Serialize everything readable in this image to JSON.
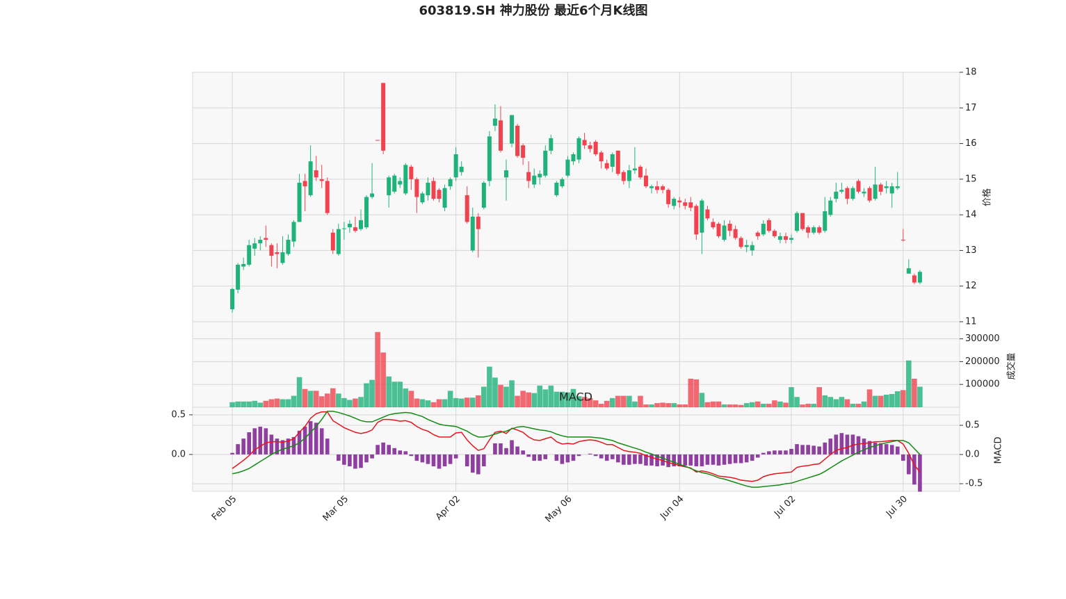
{
  "chart_data": {
    "type": "candlestick",
    "title": "603819.SH 神力股份 最近6个月K线图",
    "categories": [
      "Feb 05",
      null,
      null,
      null,
      null,
      null,
      null,
      null,
      null,
      null,
      null,
      null,
      null,
      null,
      null,
      null,
      null,
      null,
      null,
      null,
      "Mar 05",
      null,
      null,
      null,
      null,
      null,
      null,
      null,
      null,
      null,
      null,
      null,
      null,
      null,
      null,
      null,
      null,
      null,
      null,
      null,
      "Apr 02",
      null,
      null,
      null,
      null,
      null,
      null,
      null,
      null,
      null,
      null,
      null,
      null,
      null,
      null,
      null,
      null,
      null,
      null,
      null,
      "May 06",
      null,
      null,
      null,
      null,
      null,
      null,
      null,
      null,
      null,
      null,
      null,
      null,
      null,
      null,
      null,
      null,
      null,
      null,
      null,
      "Jun 04",
      null,
      null,
      null,
      null,
      null,
      null,
      null,
      null,
      null,
      null,
      null,
      null,
      null,
      null,
      null,
      null,
      null,
      null,
      null,
      "Jul 02",
      null,
      null,
      null,
      null,
      null,
      null,
      null,
      null,
      null,
      null,
      null,
      null,
      null,
      null,
      null,
      null,
      null,
      null,
      null,
      "Jul 30",
      null,
      null,
      null
    ],
    "up_color": "#1fb27a",
    "down_color": "#f0434f",
    "grid": true,
    "ylabel": "价格",
    "ylim": [
      11,
      18
    ],
    "yticks": [
      11,
      12,
      13,
      14,
      15,
      16,
      17,
      18
    ],
    "open": [
      11.35,
      11.9,
      12.55,
      12.6,
      13.05,
      13.2,
      13.35,
      13.15,
      12.95,
      12.65,
      12.9,
      13.25,
      13.8,
      14.95,
      14.55,
      15.25,
      15.0,
      14.95,
      13.5,
      12.9,
      13.6,
      13.65,
      13.65,
      13.6,
      13.65,
      14.5,
      16.1,
      17.7,
      14.55,
      14.65,
      14.85,
      14.6,
      15.35,
      15.0,
      14.35,
      14.55,
      14.95,
      14.7,
      14.2,
      14.8,
      15.05,
      15.2,
      14.55,
      13.0,
      13.95,
      14.2,
      14.95,
      16.5,
      16.65,
      15.05,
      16.0,
      16.5,
      15.95,
      15.2,
      14.85,
      15.05,
      15.1,
      15.8,
      14.55,
      14.8,
      15.1,
      15.5,
      15.55,
      16.1,
      15.95,
      16.05,
      15.75,
      15.45,
      15.35,
      15.8,
      15.2,
      14.95,
      15.25,
      15.35,
      15.1,
      14.75,
      14.8,
      14.8,
      14.7,
      14.25,
      14.4,
      14.35,
      14.35,
      14.25,
      13.5,
      14.15,
      13.8,
      13.75,
      13.3,
      13.75,
      13.6,
      13.35,
      13.1,
      13.0,
      13.5,
      13.45,
      13.85,
      13.55,
      13.3,
      13.4,
      13.3,
      13.55,
      14.05,
      13.65,
      13.5,
      13.65,
      13.55,
      14.0,
      14.45,
      14.65,
      14.75,
      14.45,
      14.95,
      14.6,
      14.75,
      14.45,
      14.85,
      14.75,
      14.6,
      14.75,
      13.3,
      12.35,
      12.3,
      12.1
    ],
    "high": [
      11.95,
      12.65,
      12.8,
      13.3,
      13.35,
      13.4,
      13.7,
      13.2,
      13.2,
      13.4,
      13.45,
      13.85,
      15.15,
      15.15,
      15.95,
      15.65,
      15.4,
      15.05,
      13.6,
      13.75,
      13.8,
      13.85,
      13.95,
      14.15,
      14.55,
      15.45,
      16.1,
      17.7,
      15.1,
      15.15,
      15.05,
      15.45,
      15.4,
      15.05,
      14.65,
      15.05,
      15.05,
      14.75,
      14.85,
      15.05,
      15.9,
      15.5,
      14.8,
      14.2,
      14.05,
      14.95,
      16.35,
      17.1,
      17.05,
      15.55,
      16.8,
      16.55,
      16.0,
      15.5,
      15.3,
      15.25,
      15.95,
      16.25,
      14.95,
      15.05,
      15.65,
      15.75,
      16.2,
      16.3,
      16.05,
      16.1,
      15.8,
      15.55,
      15.75,
      15.8,
      15.25,
      15.4,
      15.9,
      15.4,
      15.3,
      14.85,
      14.95,
      14.85,
      14.75,
      14.5,
      14.5,
      14.45,
      14.5,
      14.3,
      14.45,
      14.25,
      13.9,
      13.8,
      13.85,
      13.85,
      13.7,
      13.4,
      13.3,
      13.25,
      13.55,
      13.85,
      13.9,
      13.6,
      13.5,
      13.5,
      13.45,
      14.1,
      14.05,
      13.7,
      13.7,
      13.7,
      14.5,
      14.5,
      14.9,
      14.9,
      14.8,
      14.8,
      15.0,
      14.75,
      14.8,
      15.35,
      14.9,
      14.95,
      14.9,
      15.2,
      13.6,
      12.75,
      12.35,
      12.45
    ],
    "low": [
      11.25,
      11.8,
      12.45,
      12.55,
      12.85,
      13.0,
      13.1,
      12.55,
      12.5,
      12.6,
      12.85,
      13.1,
      13.8,
      14.1,
      14.5,
      14.95,
      14.75,
      14.0,
      12.9,
      12.85,
      13.3,
      13.5,
      13.5,
      13.55,
      13.6,
      14.45,
      16.08,
      15.7,
      14.2,
      14.6,
      14.75,
      14.55,
      14.7,
      14.05,
      14.3,
      14.4,
      14.4,
      14.35,
      14.1,
      14.7,
      14.95,
      15.1,
      13.75,
      12.95,
      12.8,
      14.15,
      14.8,
      16.35,
      15.75,
      14.4,
      15.9,
      15.6,
      15.4,
      14.75,
      14.75,
      14.85,
      15.05,
      15.7,
      14.5,
      14.75,
      15.05,
      15.4,
      15.45,
      15.85,
      15.75,
      15.65,
      15.3,
      15.25,
      15.2,
      15.1,
      14.85,
      14.75,
      15.15,
      15.0,
      14.75,
      14.6,
      14.6,
      14.6,
      14.2,
      14.15,
      14.2,
      14.15,
      14.1,
      13.3,
      12.9,
      13.85,
      13.6,
      13.35,
      13.25,
      13.4,
      13.3,
      13.05,
      12.95,
      12.85,
      13.3,
      13.4,
      13.5,
      13.35,
      13.2,
      13.2,
      13.2,
      13.5,
      13.55,
      13.35,
      13.45,
      13.45,
      13.5,
      13.95,
      14.35,
      14.6,
      14.3,
      14.4,
      14.6,
      14.5,
      14.35,
      14.4,
      14.55,
      14.6,
      14.2,
      14.7,
      13.25,
      12.35,
      12.05,
      12.05
    ],
    "close": [
      11.92,
      12.6,
      12.62,
      13.15,
      13.2,
      13.3,
      13.3,
      12.85,
      12.9,
      12.95,
      13.3,
      13.8,
      14.9,
      14.8,
      15.5,
      15.05,
      14.95,
      14.05,
      13.0,
      13.6,
      13.62,
      13.75,
      13.55,
      13.85,
      14.5,
      14.6,
      16.08,
      15.8,
      15.05,
      15.1,
      14.95,
      15.4,
      15.0,
      14.5,
      14.6,
      14.9,
      14.45,
      14.45,
      14.75,
      15.0,
      15.7,
      15.35,
      13.8,
      13.95,
      13.6,
      14.9,
      16.2,
      16.7,
      15.8,
      15.25,
      16.8,
      15.65,
      15.6,
      14.95,
      15.1,
      15.15,
      15.8,
      16.15,
      14.9,
      15.0,
      15.55,
      15.7,
      16.15,
      15.95,
      15.85,
      15.7,
      15.5,
      15.3,
      15.7,
      15.15,
      14.95,
      15.25,
      15.3,
      15.05,
      14.8,
      14.8,
      14.7,
      14.7,
      14.3,
      14.45,
      14.35,
      14.25,
      14.2,
      13.45,
      14.4,
      13.9,
      13.65,
      13.4,
      13.7,
      13.55,
      13.35,
      13.1,
      13.15,
      13.15,
      13.4,
      13.75,
      13.55,
      13.4,
      13.4,
      13.3,
      13.35,
      14.05,
      13.6,
      13.5,
      13.65,
      13.5,
      14.1,
      14.4,
      14.65,
      14.7,
      14.45,
      14.75,
      14.65,
      14.65,
      14.4,
      14.85,
      14.65,
      14.8,
      14.8,
      14.8,
      13.28,
      12.5,
      12.1,
      12.4
    ],
    "volume": {
      "ylabel": "成交量",
      "ylim": [
        0,
        375000
      ],
      "yticks": [
        100000,
        200000,
        300000
      ],
      "values": [
        22000,
        25000,
        25000,
        25000,
        28000,
        20000,
        28000,
        35000,
        38000,
        35000,
        35000,
        50000,
        132000,
        80000,
        72000,
        72000,
        48000,
        60000,
        83000,
        60000,
        40000,
        32000,
        38000,
        45000,
        105000,
        120000,
        330000,
        240000,
        135000,
        112000,
        112000,
        82000,
        72000,
        38000,
        35000,
        30000,
        22000,
        35000,
        35000,
        72000,
        40000,
        38000,
        42000,
        42000,
        52000,
        90000,
        178000,
        130000,
        98000,
        90000,
        118000,
        50000,
        72000,
        65000,
        62000,
        95000,
        78000,
        95000,
        68000,
        68000,
        65000,
        80000,
        48000,
        45000,
        40000,
        30000,
        15000,
        28000,
        40000,
        50000,
        50000,
        50000,
        25000,
        50000,
        12000,
        12000,
        18000,
        20000,
        18000,
        18000,
        12000,
        12000,
        125000,
        122000,
        63000,
        22000,
        25000,
        25000,
        12000,
        12000,
        12000,
        10000,
        18000,
        22000,
        25000,
        15000,
        15000,
        30000,
        25000,
        20000,
        88000,
        45000,
        12000,
        15000,
        15000,
        88000,
        52000,
        45000,
        35000,
        45000,
        35000,
        15000,
        15000,
        25000,
        78000,
        50000,
        50000,
        55000,
        58000,
        70000,
        75000,
        205000,
        125000,
        90000
      ]
    },
    "macd": {
      "title": "MACD",
      "ylabel": "MACD",
      "ylim": [
        -0.465,
        0.596
      ],
      "yticks": [
        {
          "value": 0,
          "label": "0.0"
        },
        0.5
      ],
      "y2lim": [
        -0.63,
        0.81
      ],
      "y2ticks": [
        -0.5,
        {
          "value": 0,
          "label": "0.0"
        },
        0.5
      ],
      "histogram": {
        "color": "#8e3fa0",
        "values": [
          0.02,
          0.13,
          0.2,
          0.28,
          0.33,
          0.35,
          0.33,
          0.25,
          0.2,
          0.18,
          0.2,
          0.22,
          0.3,
          0.35,
          0.42,
          0.4,
          0.33,
          0.2,
          0,
          -0.08,
          -0.13,
          -0.15,
          -0.18,
          -0.17,
          -0.1,
          -0.05,
          0.12,
          0.15,
          0.12,
          0.08,
          0.05,
          0.04,
          -0.02,
          -0.08,
          -0.1,
          -0.12,
          -0.15,
          -0.18,
          -0.15,
          -0.12,
          -0.05,
          0,
          -0.15,
          -0.23,
          -0.25,
          -0.15,
          0,
          0.14,
          0.14,
          0.08,
          0.18,
          0.1,
          0.05,
          -0.03,
          -0.08,
          -0.08,
          -0.06,
          0,
          -0.08,
          -0.12,
          -0.1,
          -0.08,
          -0.02,
          0,
          0.01,
          -0.02,
          -0.05,
          -0.08,
          -0.06,
          -0.1,
          -0.13,
          -0.13,
          -0.12,
          -0.12,
          -0.14,
          -0.14,
          -0.15,
          -0.14,
          -0.16,
          -0.15,
          -0.15,
          -0.14,
          -0.14,
          -0.15,
          -0.15,
          -0.13,
          -0.13,
          -0.14,
          -0.13,
          -0.12,
          -0.11,
          -0.11,
          -0.1,
          -0.08,
          -0.04,
          0.02,
          0.04,
          0.05,
          0.05,
          0.05,
          0.07,
          0.13,
          0.12,
          0.12,
          0.11,
          0.1,
          0.15,
          0.2,
          0.25,
          0.27,
          0.25,
          0.25,
          0.23,
          0.2,
          0.17,
          0.15,
          0.14,
          0.13,
          0.12,
          0.1,
          -0.08,
          -0.25,
          -0.38,
          -0.47
        ]
      },
      "series": [
        {
          "color": "#e8141c",
          "axis": "y2",
          "values": [
            -0.24,
            -0.17,
            -0.1,
            -0.02,
            0.08,
            0.14,
            0.2,
            0.22,
            0.22,
            0.21,
            0.23,
            0.27,
            0.38,
            0.48,
            0.62,
            0.7,
            0.73,
            0.73,
            0.58,
            0.52,
            0.46,
            0.42,
            0.38,
            0.36,
            0.38,
            0.42,
            0.55,
            0.6,
            0.6,
            0.59,
            0.57,
            0.58,
            0.55,
            0.48,
            0.43,
            0.4,
            0.34,
            0.3,
            0.3,
            0.3,
            0.37,
            0.38,
            0.25,
            0.15,
            0.07,
            0.1,
            0.25,
            0.38,
            0.4,
            0.36,
            0.45,
            0.42,
            0.38,
            0.3,
            0.25,
            0.24,
            0.27,
            0.3,
            0.22,
            0.18,
            0.19,
            0.18,
            0.22,
            0.24,
            0.25,
            0.24,
            0.21,
            0.17,
            0.17,
            0.12,
            0.07,
            0.05,
            0.04,
            0.02,
            -0.02,
            -0.05,
            -0.08,
            -0.1,
            -0.14,
            -0.16,
            -0.19,
            -0.21,
            -0.23,
            -0.3,
            -0.28,
            -0.3,
            -0.33,
            -0.37,
            -0.38,
            -0.39,
            -0.41,
            -0.44,
            -0.45,
            -0.46,
            -0.44,
            -0.38,
            -0.35,
            -0.33,
            -0.32,
            -0.31,
            -0.3,
            -0.22,
            -0.2,
            -0.19,
            -0.17,
            -0.16,
            -0.08,
            0.0,
            0.07,
            0.1,
            0.12,
            0.16,
            0.18,
            0.19,
            0.2,
            0.22,
            0.22,
            0.23,
            0.24,
            0.24,
            0.18,
            0.02,
            -0.18,
            -0.3
          ]
        },
        {
          "color": "#138a13",
          "axis": "y2",
          "values": [
            -0.33,
            -0.31,
            -0.28,
            -0.24,
            -0.18,
            -0.12,
            -0.06,
            0.0,
            0.05,
            0.09,
            0.12,
            0.15,
            0.2,
            0.28,
            0.38,
            0.48,
            0.6,
            0.74,
            0.74,
            0.72,
            0.69,
            0.66,
            0.62,
            0.58,
            0.56,
            0.56,
            0.6,
            0.64,
            0.68,
            0.7,
            0.71,
            0.72,
            0.71,
            0.68,
            0.65,
            0.6,
            0.56,
            0.52,
            0.5,
            0.49,
            0.48,
            0.44,
            0.4,
            0.34,
            0.3,
            0.3,
            0.32,
            0.35,
            0.38,
            0.4,
            0.44,
            0.47,
            0.48,
            0.46,
            0.44,
            0.42,
            0.41,
            0.39,
            0.35,
            0.32,
            0.3,
            0.3,
            0.3,
            0.3,
            0.3,
            0.29,
            0.28,
            0.26,
            0.24,
            0.2,
            0.17,
            0.14,
            0.11,
            0.08,
            0.04,
            0.01,
            -0.03,
            -0.06,
            -0.1,
            -0.13,
            -0.17,
            -0.2,
            -0.24,
            -0.28,
            -0.31,
            -0.33,
            -0.36,
            -0.4,
            -0.42,
            -0.45,
            -0.48,
            -0.51,
            -0.54,
            -0.56,
            -0.56,
            -0.55,
            -0.54,
            -0.53,
            -0.52,
            -0.5,
            -0.49,
            -0.46,
            -0.43,
            -0.4,
            -0.37,
            -0.34,
            -0.29,
            -0.23,
            -0.17,
            -0.11,
            -0.06,
            -0.01,
            0.04,
            0.08,
            0.12,
            0.15,
            0.18,
            0.2,
            0.22,
            0.24,
            0.24,
            0.2,
            0.1,
            0.0
          ]
        }
      ]
    }
  }
}
